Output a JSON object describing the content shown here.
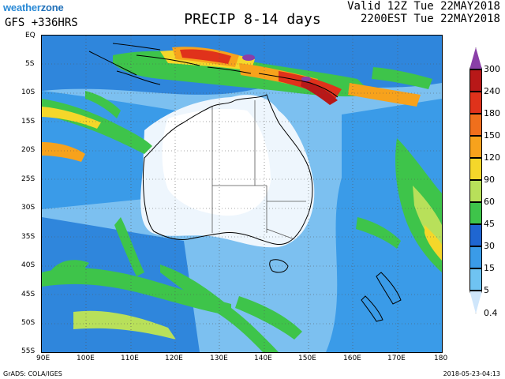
{
  "header": {
    "brand_main": "weather",
    "brand_suffix": "zone",
    "model_line": "GFS +336HRS",
    "title": "PRECIP 8-14 days",
    "valid_line1": "Valid 12Z Tue 22MAY2018",
    "valid_line2": "2200EST Tue 22MAY2018"
  },
  "axes": {
    "lat_labels": [
      "EQ",
      "5S",
      "10S",
      "15S",
      "20S",
      "25S",
      "30S",
      "35S",
      "40S",
      "45S",
      "50S",
      "55S"
    ],
    "lon_labels": [
      "90E",
      "100E",
      "110E",
      "120E",
      "130E",
      "140E",
      "150E",
      "160E",
      "170E",
      "180"
    ]
  },
  "legend": {
    "labels": [
      "300",
      "240",
      "180",
      "150",
      "120",
      "90",
      "60",
      "45",
      "30",
      "15",
      "5",
      "0.4"
    ],
    "colors": [
      "#8a3fa8",
      "#b81818",
      "#e0321b",
      "#f06f1c",
      "#f7a21c",
      "#f5d72a",
      "#b8e05a",
      "#3ec44a",
      "#1f66d1",
      "#3a9be8",
      "#6fc3f2",
      "#cfe6fb"
    ]
  },
  "footer": {
    "left": "GrADS: COLA/IGES",
    "right": "2018-05-23-04:13"
  }
}
